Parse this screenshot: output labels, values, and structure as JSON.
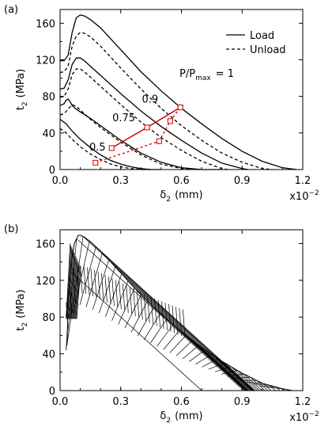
{
  "colors": {
    "axes": "#000000",
    "series": "#000000",
    "highlight": "#d00000"
  },
  "chart_data": [
    {
      "panel_label": "(a)",
      "type": "line",
      "xlabel_sym": "δ",
      "xlabel_sub": "2",
      "xlabel_unit": "(mm)",
      "ylabel_sym": "t",
      "ylabel_sub": "2",
      "ylabel_unit": "(MPa)",
      "x_multiplier": "x10",
      "x_multiplier_exp": "−2",
      "xlim": [
        0,
        1.2
      ],
      "ylim": [
        0,
        175
      ],
      "xticks": [
        0,
        0.3,
        0.6,
        0.9,
        1.2
      ],
      "xtick_labels": [
        "0.0",
        "0.3",
        "0.6",
        "0.9",
        "1.2"
      ],
      "yticks": [
        0,
        40,
        80,
        120,
        160
      ],
      "ytick_labels": [
        "0",
        "40",
        "80",
        "120",
        "160"
      ],
      "grid": false,
      "legend": {
        "position": "top-right",
        "load_label": "Load",
        "unload_label": "Unload"
      },
      "ratio_prefix": "P/P",
      "ratio_sub": "max",
      "ratio_value": "= 1",
      "ratio_labels": [
        {
          "text": "0.9",
          "x": 0.445,
          "y": 73
        },
        {
          "text": "0.75",
          "x": 0.315,
          "y": 53
        },
        {
          "text": "0.5",
          "x": 0.185,
          "y": 21
        }
      ],
      "series": [
        {
          "name": "Load",
          "style": "solid",
          "ratio": "1",
          "x": [
            0.0,
            0.02,
            0.04,
            0.06,
            0.08,
            0.1,
            0.12,
            0.15,
            0.2,
            0.3,
            0.4,
            0.5,
            0.6,
            0.7,
            0.8,
            0.9,
            1.0,
            1.1,
            1.17
          ],
          "y": [
            119,
            119,
            125,
            150,
            166,
            169,
            168,
            164,
            155,
            131,
            107,
            86,
            67,
            50,
            34,
            20,
            9,
            2,
            0
          ]
        },
        {
          "name": "Unload",
          "style": "dashed",
          "ratio": "1",
          "x": [
            0.0,
            0.02,
            0.04,
            0.06,
            0.08,
            0.1,
            0.12,
            0.15,
            0.2,
            0.3,
            0.4,
            0.5,
            0.6,
            0.7,
            0.8,
            0.9,
            1.0,
            1.05
          ],
          "y": [
            106,
            107,
            113,
            135,
            146,
            150,
            149,
            145,
            135,
            111,
            88,
            67,
            48,
            32,
            18,
            8,
            1,
            0
          ]
        },
        {
          "name": "Load",
          "style": "solid",
          "ratio": "0.9",
          "x": [
            0.0,
            0.02,
            0.04,
            0.06,
            0.08,
            0.1,
            0.12,
            0.15,
            0.2,
            0.3,
            0.4,
            0.5,
            0.6,
            0.7,
            0.8,
            0.9,
            0.93
          ],
          "y": [
            88,
            89,
            98,
            115,
            122,
            122,
            119,
            113,
            103,
            83,
            64,
            47,
            32,
            18,
            7,
            1,
            0
          ]
        },
        {
          "name": "Unload",
          "style": "dashed",
          "ratio": "0.9",
          "x": [
            0.0,
            0.02,
            0.04,
            0.06,
            0.08,
            0.1,
            0.12,
            0.15,
            0.2,
            0.3,
            0.4,
            0.5,
            0.6,
            0.7,
            0.8,
            0.83
          ],
          "y": [
            79,
            80,
            88,
            104,
            110,
            110,
            107,
            101,
            91,
            71,
            52,
            35,
            21,
            9,
            1,
            0
          ]
        },
        {
          "name": "Load",
          "style": "solid",
          "ratio": "0.75",
          "x": [
            0.0,
            0.02,
            0.03,
            0.04,
            0.05,
            0.06,
            0.08,
            0.1,
            0.15,
            0.2,
            0.3,
            0.4,
            0.5,
            0.6,
            0.7,
            0.8
          ],
          "y": [
            70,
            72,
            76,
            77,
            74,
            70,
            66,
            63,
            56,
            48,
            32,
            18,
            8,
            2,
            0,
            0
          ]
        },
        {
          "name": "Unload",
          "style": "dashed",
          "ratio": "0.75",
          "x": [
            0.0,
            0.02,
            0.04,
            0.06,
            0.08,
            0.1,
            0.15,
            0.2,
            0.3,
            0.4,
            0.5,
            0.6,
            0.7
          ],
          "y": [
            60,
            61,
            66,
            71,
            69,
            65,
            55,
            46,
            30,
            16,
            6,
            1,
            0
          ]
        },
        {
          "name": "Load",
          "style": "solid",
          "ratio": "0.5",
          "x": [
            0.0,
            0.03,
            0.06,
            0.1,
            0.15,
            0.2,
            0.25,
            0.3,
            0.35,
            0.4,
            0.45,
            0.5
          ],
          "y": [
            55,
            50,
            42,
            33,
            24,
            16,
            10,
            6,
            3,
            1,
            0,
            0
          ]
        },
        {
          "name": "Unload",
          "style": "dashed",
          "ratio": "0.5",
          "x": [
            0.0,
            0.03,
            0.06,
            0.1,
            0.15,
            0.2,
            0.25,
            0.3,
            0.35,
            0.4,
            0.45
          ],
          "y": [
            45,
            40,
            33,
            25,
            17,
            11,
            6,
            3,
            1,
            0,
            0
          ]
        }
      ],
      "red_markers": {
        "load_points": [
          [
            0.255,
            23.5
          ],
          [
            0.43,
            46
          ],
          [
            0.595,
            68
          ]
        ],
        "unload_points": [
          [
            0.175,
            7.5
          ],
          [
            0.49,
            31
          ],
          [
            0.545,
            53
          ],
          [
            0.595,
            68
          ]
        ]
      }
    },
    {
      "panel_label": "(b)",
      "type": "line",
      "xlabel_sym": "δ",
      "xlabel_sub": "2",
      "xlabel_unit": "(mm)",
      "ylabel_sym": "t",
      "ylabel_sub": "2",
      "ylabel_unit": "(MPa)",
      "x_multiplier": "x10",
      "x_multiplier_exp": "−2",
      "xlim": [
        0,
        1.2
      ],
      "ylim": [
        0,
        175
      ],
      "xticks": [
        0,
        0.3,
        0.6,
        0.9,
        1.2
      ],
      "xtick_labels": [
        "0.0",
        "0.3",
        "0.6",
        "0.9",
        "1.2"
      ],
      "yticks": [
        0,
        40,
        80,
        120,
        160
      ],
      "ytick_labels": [
        "0",
        "40",
        "80",
        "120",
        "160"
      ],
      "grid": false,
      "envelope": {
        "x": [
          0.03,
          0.05,
          0.07,
          0.09,
          0.1,
          0.12,
          0.15,
          0.2,
          0.3,
          0.4,
          0.5,
          0.6,
          0.7,
          0.8,
          0.9,
          1.0,
          1.1,
          1.15
        ],
        "y": [
          80,
          130,
          160,
          169,
          169,
          167,
          162,
          152,
          128,
          104,
          83,
          64,
          47,
          32,
          19,
          8,
          2,
          0
        ]
      },
      "cycle_count": 34,
      "unload_slope_mpa_per_unit": -200
    }
  ]
}
